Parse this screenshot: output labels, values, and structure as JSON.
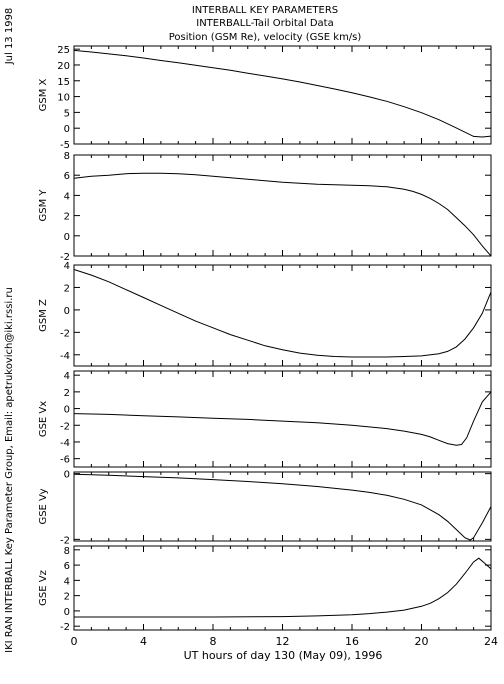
{
  "header": {
    "title_line1": "INTERBALL KEY PARAMETERS",
    "title_line2": "INTERBALL-Tail Orbital Data",
    "title_line3": "Position (GSM Re), velocity (GSE km/s)"
  },
  "side_text": {
    "date": "Jul 13 1998",
    "credit": "IKI RAN INTERBALL Key Parameter Group, Email: apetrukovich@iki.rssi.ru"
  },
  "chart_data": {
    "type": "line",
    "xlabel": "UT hours of day 130 (May 09), 1996",
    "xlim": [
      0,
      24
    ],
    "xticks": [
      0,
      4,
      8,
      12,
      16,
      20,
      24
    ],
    "panels": [
      {
        "name": "gsm-x",
        "ylabel": "GSM X",
        "ylim": [
          -5,
          26
        ],
        "yticks": [
          -5,
          0,
          5,
          10,
          15,
          20,
          25
        ],
        "series": [
          {
            "x": [
              0,
              1,
              2,
              3,
              4,
              5,
              6,
              7,
              8,
              9,
              10,
              11,
              12,
              13,
              14,
              15,
              16,
              17,
              18,
              19,
              20,
              21,
              22,
              23,
              23.5,
              24
            ],
            "y": [
              24.6,
              24.1,
              23.5,
              22.9,
              22.2,
              21.4,
              20.7,
              19.9,
              19.1,
              18.3,
              17.4,
              16.5,
              15.6,
              14.6,
              13.5,
              12.4,
              11.2,
              9.9,
              8.5,
              6.8,
              4.9,
              2.7,
              0.1,
              -2.6,
              -2.8,
              -2.5
            ]
          }
        ]
      },
      {
        "name": "gsm-y",
        "ylabel": "GSM Y",
        "ylim": [
          -2,
          8
        ],
        "yticks": [
          -2,
          0,
          2,
          4,
          6,
          8
        ],
        "series": [
          {
            "x": [
              0,
              1,
              2,
              3,
              4,
              5,
              6,
              7,
              8,
              9,
              10,
              11,
              12,
              13,
              14,
              15,
              16,
              17,
              18,
              19,
              19.5,
              20,
              20.5,
              21,
              21.5,
              22,
              22.5,
              23,
              23.5,
              24
            ],
            "y": [
              5.7,
              5.9,
              6.0,
              6.15,
              6.2,
              6.2,
              6.15,
              6.05,
              5.9,
              5.75,
              5.6,
              5.45,
              5.3,
              5.2,
              5.1,
              5.05,
              5.0,
              4.95,
              4.85,
              4.6,
              4.4,
              4.1,
              3.7,
              3.2,
              2.6,
              1.8,
              1.0,
              0.1,
              -1.0,
              -2.0
            ]
          }
        ]
      },
      {
        "name": "gsm-z",
        "ylabel": "GSM Z",
        "ylim": [
          -5,
          4
        ],
        "yticks": [
          -4,
          -2,
          0,
          2,
          4
        ],
        "series": [
          {
            "x": [
              0,
              1,
              2,
              3,
              4,
              5,
              6,
              7,
              8,
              9,
              10,
              11,
              12,
              13,
              14,
              15,
              16,
              17,
              18,
              19,
              20,
              21,
              21.5,
              22,
              22.5,
              23,
              23.5,
              24
            ],
            "y": [
              3.6,
              3.1,
              2.5,
              1.8,
              1.1,
              0.4,
              -0.3,
              -1.0,
              -1.6,
              -2.2,
              -2.7,
              -3.2,
              -3.55,
              -3.85,
              -4.05,
              -4.15,
              -4.2,
              -4.2,
              -4.2,
              -4.15,
              -4.1,
              -3.9,
              -3.7,
              -3.3,
              -2.6,
              -1.6,
              -0.3,
              1.6
            ]
          }
        ]
      },
      {
        "name": "gse-vx",
        "ylabel": "GSE Vx",
        "ylim": [
          -7,
          4.5
        ],
        "yticks": [
          -6,
          -4,
          -2,
          0,
          2,
          4
        ],
        "series": [
          {
            "x": [
              0,
              2,
              4,
              6,
              8,
              10,
              12,
              14,
              16,
              18,
              19,
              20,
              20.5,
              21,
              21.5,
              22,
              22.3,
              22.6,
              23,
              23.5,
              24
            ],
            "y": [
              -0.6,
              -0.7,
              -0.85,
              -1.0,
              -1.15,
              -1.3,
              -1.5,
              -1.7,
              -2.0,
              -2.4,
              -2.7,
              -3.1,
              -3.4,
              -3.8,
              -4.2,
              -4.4,
              -4.3,
              -3.5,
              -1.5,
              0.8,
              2.0
            ]
          }
        ]
      },
      {
        "name": "gse-vy",
        "ylabel": "GSE Vy",
        "ylim": [
          -2.05,
          0.05
        ],
        "yticks": [
          -2,
          0
        ],
        "series": [
          {
            "x": [
              0,
              2,
              4,
              6,
              8,
              10,
              12,
              14,
              16,
              17,
              18,
              19,
              20,
              21,
              21.5,
              22,
              22.5,
              22.8,
              23,
              23.5,
              24
            ],
            "y": [
              -0.02,
              -0.05,
              -0.09,
              -0.13,
              -0.18,
              -0.24,
              -0.31,
              -0.39,
              -0.5,
              -0.57,
              -0.66,
              -0.78,
              -0.95,
              -1.25,
              -1.45,
              -1.7,
              -1.95,
              -2.02,
              -1.95,
              -1.5,
              -1.0
            ]
          }
        ]
      },
      {
        "name": "gse-vz",
        "ylabel": "GSE Vz",
        "ylim": [
          -2.5,
          8.5
        ],
        "yticks": [
          -2,
          0,
          2,
          4,
          6,
          8
        ],
        "series": [
          {
            "x": [
              0,
              4,
              8,
              12,
              14,
              16,
              17,
              18,
              19,
              20,
              20.5,
              21,
              21.5,
              22,
              22.5,
              23,
              23.3,
              23.6,
              24
            ],
            "y": [
              -0.8,
              -0.8,
              -0.8,
              -0.75,
              -0.65,
              -0.5,
              -0.35,
              -0.15,
              0.1,
              0.6,
              1.0,
              1.6,
              2.4,
              3.5,
              4.9,
              6.4,
              6.9,
              6.3,
              5.5
            ]
          }
        ]
      }
    ]
  }
}
